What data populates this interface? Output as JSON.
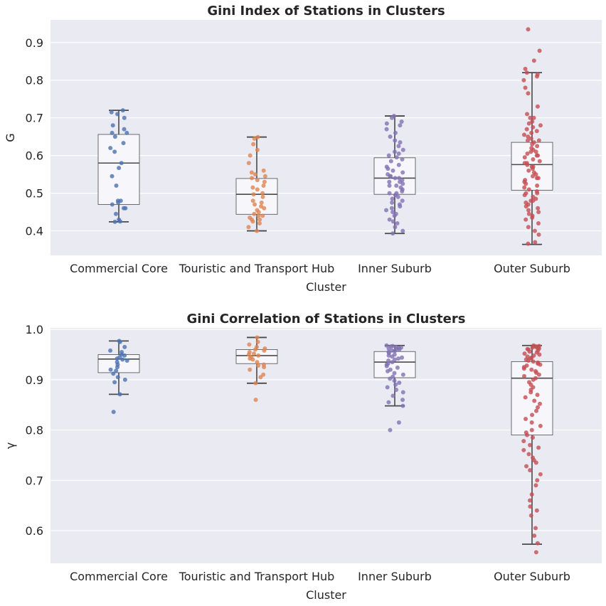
{
  "chart_data": [
    {
      "type": "box",
      "title": "Gini Index of Stations in Clusters",
      "xlabel": "Cluster",
      "ylabel": "G",
      "ylim": [
        0.335,
        0.96
      ],
      "yticks": [
        "0.4",
        "0.5",
        "0.6",
        "0.7",
        "0.8",
        "0.9"
      ],
      "grid": true,
      "categories": [
        "Commercial Core",
        "Touristic and Transport Hub",
        "Inner Suburb",
        "Outer Suburb"
      ],
      "colors": [
        "#4c72b0",
        "#dd8452",
        "#8172b3",
        "#c44e52"
      ],
      "boxes": [
        {
          "whislo": 0.424,
          "q1": 0.47,
          "median": 0.58,
          "q3": 0.656,
          "whishi": 0.72
        },
        {
          "whislo": 0.4,
          "q1": 0.444,
          "median": 0.497,
          "q3": 0.539,
          "whishi": 0.649
        },
        {
          "whislo": 0.393,
          "q1": 0.497,
          "median": 0.54,
          "q3": 0.594,
          "whishi": 0.705
        },
        {
          "whislo": 0.364,
          "q1": 0.508,
          "median": 0.576,
          "q3": 0.635,
          "whishi": 0.82
        }
      ],
      "points": [
        [
          0.72,
          0.715,
          0.71,
          0.7,
          0.68,
          0.67,
          0.66,
          0.66,
          0.65,
          0.633,
          0.62,
          0.61,
          0.58,
          0.567,
          0.545,
          0.52,
          0.48,
          0.48,
          0.475,
          0.47,
          0.46,
          0.46,
          0.445,
          0.43,
          0.425,
          0.424
        ],
        [
          0.649,
          0.645,
          0.63,
          0.615,
          0.6,
          0.58,
          0.56,
          0.555,
          0.55,
          0.545,
          0.54,
          0.535,
          0.53,
          0.52,
          0.515,
          0.51,
          0.5,
          0.497,
          0.49,
          0.48,
          0.475,
          0.47,
          0.465,
          0.46,
          0.455,
          0.45,
          0.445,
          0.44,
          0.44,
          0.435,
          0.43,
          0.43,
          0.425,
          0.42,
          0.41,
          0.4
        ],
        [
          0.705,
          0.7,
          0.69,
          0.685,
          0.68,
          0.67,
          0.66,
          0.65,
          0.64,
          0.635,
          0.625,
          0.615,
          0.61,
          0.605,
          0.6,
          0.595,
          0.59,
          0.585,
          0.575,
          0.57,
          0.565,
          0.56,
          0.555,
          0.55,
          0.545,
          0.545,
          0.54,
          0.54,
          0.535,
          0.53,
          0.53,
          0.525,
          0.52,
          0.52,
          0.515,
          0.51,
          0.505,
          0.5,
          0.5,
          0.495,
          0.49,
          0.485,
          0.48,
          0.475,
          0.47,
          0.465,
          0.46,
          0.455,
          0.45,
          0.445,
          0.44,
          0.43,
          0.425,
          0.42,
          0.41,
          0.4,
          0.393
        ],
        [
          0.935,
          0.878,
          0.852,
          0.83,
          0.82,
          0.815,
          0.81,
          0.8,
          0.78,
          0.765,
          0.73,
          0.71,
          0.7,
          0.7,
          0.69,
          0.685,
          0.68,
          0.675,
          0.67,
          0.665,
          0.66,
          0.655,
          0.65,
          0.645,
          0.64,
          0.64,
          0.635,
          0.63,
          0.625,
          0.62,
          0.615,
          0.61,
          0.61,
          0.605,
          0.6,
          0.6,
          0.595,
          0.59,
          0.585,
          0.58,
          0.58,
          0.575,
          0.57,
          0.57,
          0.565,
          0.56,
          0.555,
          0.55,
          0.545,
          0.54,
          0.54,
          0.535,
          0.53,
          0.525,
          0.52,
          0.515,
          0.51,
          0.505,
          0.5,
          0.5,
          0.495,
          0.49,
          0.485,
          0.48,
          0.48,
          0.475,
          0.47,
          0.465,
          0.46,
          0.455,
          0.45,
          0.445,
          0.44,
          0.435,
          0.43,
          0.42,
          0.41,
          0.4,
          0.39,
          0.37,
          0.366
        ]
      ]
    },
    {
      "type": "box",
      "title": "Gini Correlation of Stations in Clusters",
      "xlabel": "Cluster",
      "ylabel": "γ",
      "ylim": [
        0.535,
        1.003
      ],
      "yticks": [
        "0.6",
        "0.7",
        "0.8",
        "0.9",
        "1.0"
      ],
      "grid": true,
      "categories": [
        "Commercial Core",
        "Touristic and Transport Hub",
        "Inner Suburb",
        "Outer Suburb"
      ],
      "colors": [
        "#4c72b0",
        "#dd8452",
        "#8172b3",
        "#c44e52"
      ],
      "boxes": [
        {
          "whislo": 0.871,
          "q1": 0.914,
          "median": 0.941,
          "q3": 0.95,
          "whishi": 0.977
        },
        {
          "whislo": 0.893,
          "q1": 0.932,
          "median": 0.948,
          "q3": 0.96,
          "whishi": 0.984
        },
        {
          "whislo": 0.848,
          "q1": 0.904,
          "median": 0.935,
          "q3": 0.956,
          "whishi": 0.968
        },
        {
          "whislo": 0.573,
          "q1": 0.79,
          "median": 0.903,
          "q3": 0.936,
          "whishi": 0.968
        }
      ],
      "points": [
        [
          0.977,
          0.975,
          0.965,
          0.958,
          0.955,
          0.95,
          0.948,
          0.945,
          0.942,
          0.94,
          0.938,
          0.935,
          0.93,
          0.925,
          0.92,
          0.918,
          0.912,
          0.905,
          0.9,
          0.895,
          0.871,
          0.836
        ],
        [
          0.984,
          0.975,
          0.97,
          0.965,
          0.962,
          0.96,
          0.958,
          0.955,
          0.952,
          0.95,
          0.948,
          0.945,
          0.942,
          0.94,
          0.935,
          0.93,
          0.928,
          0.925,
          0.92,
          0.91,
          0.905,
          0.893,
          0.86
        ],
        [
          0.968,
          0.967,
          0.966,
          0.965,
          0.964,
          0.963,
          0.962,
          0.961,
          0.96,
          0.958,
          0.957,
          0.955,
          0.953,
          0.95,
          0.948,
          0.946,
          0.944,
          0.942,
          0.94,
          0.938,
          0.935,
          0.932,
          0.93,
          0.927,
          0.924,
          0.92,
          0.917,
          0.913,
          0.91,
          0.906,
          0.902,
          0.898,
          0.894,
          0.89,
          0.885,
          0.88,
          0.875,
          0.868,
          0.86,
          0.855,
          0.848,
          0.815,
          0.8
        ],
        [
          0.968,
          0.967,
          0.966,
          0.965,
          0.964,
          0.963,
          0.962,
          0.961,
          0.96,
          0.958,
          0.956,
          0.954,
          0.952,
          0.95,
          0.948,
          0.946,
          0.944,
          0.942,
          0.94,
          0.938,
          0.936,
          0.934,
          0.932,
          0.93,
          0.928,
          0.925,
          0.922,
          0.92,
          0.917,
          0.914,
          0.91,
          0.907,
          0.903,
          0.9,
          0.895,
          0.89,
          0.885,
          0.88,
          0.875,
          0.87,
          0.865,
          0.858,
          0.852,
          0.845,
          0.838,
          0.83,
          0.822,
          0.815,
          0.808,
          0.8,
          0.795,
          0.79,
          0.785,
          0.778,
          0.77,
          0.765,
          0.76,
          0.752,
          0.745,
          0.74,
          0.735,
          0.728,
          0.72,
          0.712,
          0.7,
          0.69,
          0.672,
          0.66,
          0.648,
          0.64,
          0.63,
          0.605,
          0.59,
          0.575,
          0.557
        ]
      ]
    }
  ]
}
